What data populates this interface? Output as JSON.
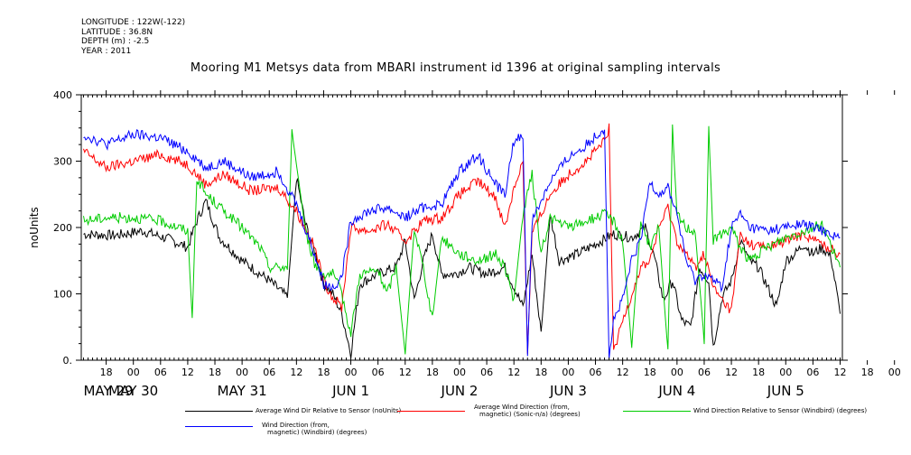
{
  "meta": {
    "longitude": "LONGITUDE : 122W(-122)",
    "latitude": "LATITUDE : 36.8N",
    "depth": "DEPTH (m) : -2.5",
    "year": "YEAR : 2011"
  },
  "chart_data": {
    "type": "line",
    "title": "Mooring M1 Metsys data from MBARI instrument id 1396 at original sampling intervals",
    "ylabel": "noUnits",
    "ylim": [
      0,
      400
    ],
    "yticks": [
      "0.",
      "100",
      "200",
      "300",
      "400"
    ],
    "hour_ticks": [
      "18",
      "00",
      "06",
      "12",
      "18",
      "00",
      "06",
      "12",
      "18",
      "00",
      "06",
      "12",
      "18",
      "00",
      "06",
      "12",
      "18",
      "00",
      "06",
      "12",
      "18",
      "00",
      "06",
      "12",
      "18",
      "00",
      "06",
      "12",
      "18",
      "00",
      "06",
      "12"
    ],
    "day_labels": [
      "MAY 29",
      "MAY 30",
      "MAY 31",
      "JUN  1",
      "JUN  2",
      "JUN  3",
      "JUN  4",
      "JUN  5"
    ],
    "x_unit": "hours since 2011-05-29 00:00",
    "xlim": [
      12.5,
      180.5
    ],
    "series": [
      {
        "name": "Average Wind Dir Relative to Sensor (noUnits)",
        "color": "#000000",
        "points": [
          [
            13,
            190
          ],
          [
            20,
            188
          ],
          [
            26,
            195
          ],
          [
            32,
            182
          ],
          [
            36,
            170
          ],
          [
            38,
            210
          ],
          [
            40,
            240
          ],
          [
            43,
            185
          ],
          [
            48,
            150
          ],
          [
            54,
            120
          ],
          [
            58,
            95
          ],
          [
            60,
            275
          ],
          [
            62,
            205
          ],
          [
            64,
            165
          ],
          [
            66,
            115
          ],
          [
            68,
            100
          ],
          [
            70,
            70
          ],
          [
            72,
            10
          ],
          [
            74,
            115
          ],
          [
            78,
            130
          ],
          [
            82,
            140
          ],
          [
            84,
            180
          ],
          [
            86,
            90
          ],
          [
            88,
            150
          ],
          [
            90,
            190
          ],
          [
            92,
            130
          ],
          [
            95,
            130
          ],
          [
            98,
            140
          ],
          [
            102,
            130
          ],
          [
            106,
            140
          ],
          [
            110,
            80
          ],
          [
            112,
            160
          ],
          [
            114,
            40
          ],
          [
            116,
            220
          ],
          [
            118,
            150
          ],
          [
            122,
            160
          ],
          [
            126,
            175
          ],
          [
            130,
            190
          ],
          [
            134,
            185
          ],
          [
            137,
            200
          ],
          [
            139,
            155
          ],
          [
            141,
            90
          ],
          [
            143,
            120
          ],
          [
            145,
            60
          ],
          [
            147,
            50
          ],
          [
            149,
            140
          ],
          [
            151,
            120
          ],
          [
            152,
            20
          ],
          [
            154,
            95
          ],
          [
            156,
            120
          ],
          [
            158,
            180
          ],
          [
            160,
            150
          ],
          [
            162,
            140
          ],
          [
            164,
            110
          ],
          [
            166,
            80
          ],
          [
            168,
            150
          ],
          [
            170,
            160
          ],
          [
            172,
            175
          ],
          [
            174,
            160
          ],
          [
            176,
            170
          ],
          [
            178,
            155
          ],
          [
            180,
            70
          ]
        ]
      },
      {
        "name": "Average Wind Direction (from, magnetic) (Sonic-n/a) (degrees)",
        "color": "#ff0000",
        "points": [
          [
            13,
            315
          ],
          [
            18,
            290
          ],
          [
            24,
            300
          ],
          [
            30,
            310
          ],
          [
            36,
            295
          ],
          [
            40,
            265
          ],
          [
            44,
            280
          ],
          [
            50,
            255
          ],
          [
            56,
            260
          ],
          [
            60,
            225
          ],
          [
            64,
            170
          ],
          [
            66,
            120
          ],
          [
            68,
            95
          ],
          [
            70,
            80
          ],
          [
            72,
            200
          ],
          [
            76,
            195
          ],
          [
            80,
            205
          ],
          [
            84,
            180
          ],
          [
            88,
            210
          ],
          [
            92,
            215
          ],
          [
            96,
            250
          ],
          [
            100,
            270
          ],
          [
            104,
            245
          ],
          [
            106,
            200
          ],
          [
            108,
            260
          ],
          [
            110,
            300
          ],
          [
            111,
            10
          ],
          [
            112,
            190
          ],
          [
            116,
            250
          ],
          [
            120,
            280
          ],
          [
            124,
            300
          ],
          [
            128,
            330
          ],
          [
            129,
            350
          ],
          [
            130,
            10
          ],
          [
            132,
            60
          ],
          [
            134,
            100
          ],
          [
            136,
            140
          ],
          [
            138,
            150
          ],
          [
            140,
            200
          ],
          [
            142,
            230
          ],
          [
            144,
            180
          ],
          [
            146,
            160
          ],
          [
            148,
            140
          ],
          [
            150,
            160
          ],
          [
            152,
            110
          ],
          [
            154,
            90
          ],
          [
            156,
            75
          ],
          [
            158,
            190
          ],
          [
            160,
            175
          ],
          [
            164,
            170
          ],
          [
            168,
            180
          ],
          [
            172,
            190
          ],
          [
            176,
            175
          ],
          [
            180,
            160
          ]
        ]
      },
      {
        "name": "Wind Direction Relative to Sensor (Windbird) (degrees)",
        "color": "#00cc00",
        "points": [
          [
            13,
            210
          ],
          [
            18,
            215
          ],
          [
            24,
            215
          ],
          [
            30,
            210
          ],
          [
            36,
            195
          ],
          [
            37,
            60
          ],
          [
            38,
            275
          ],
          [
            40,
            250
          ],
          [
            44,
            225
          ],
          [
            48,
            200
          ],
          [
            52,
            170
          ],
          [
            54,
            140
          ],
          [
            58,
            140
          ],
          [
            59,
            345
          ],
          [
            62,
            195
          ],
          [
            64,
            145
          ],
          [
            66,
            130
          ],
          [
            68,
            130
          ],
          [
            70,
            100
          ],
          [
            72,
            40
          ],
          [
            74,
            130
          ],
          [
            78,
            135
          ],
          [
            80,
            100
          ],
          [
            82,
            140
          ],
          [
            84,
            10
          ],
          [
            86,
            200
          ],
          [
            88,
            140
          ],
          [
            90,
            60
          ],
          [
            92,
            185
          ],
          [
            96,
            160
          ],
          [
            100,
            150
          ],
          [
            104,
            160
          ],
          [
            106,
            140
          ],
          [
            108,
            90
          ],
          [
            110,
            220
          ],
          [
            112,
            280
          ],
          [
            114,
            160
          ],
          [
            116,
            215
          ],
          [
            120,
            200
          ],
          [
            124,
            210
          ],
          [
            128,
            220
          ],
          [
            130,
            210
          ],
          [
            132,
            180
          ],
          [
            134,
            20
          ],
          [
            136,
            210
          ],
          [
            138,
            170
          ],
          [
            140,
            200
          ],
          [
            142,
            10
          ],
          [
            143,
            350
          ],
          [
            144,
            220
          ],
          [
            146,
            200
          ],
          [
            148,
            195
          ],
          [
            150,
            30
          ],
          [
            151,
            350
          ],
          [
            152,
            180
          ],
          [
            154,
            190
          ],
          [
            156,
            200
          ],
          [
            158,
            170
          ],
          [
            160,
            150
          ],
          [
            162,
            160
          ],
          [
            164,
            170
          ],
          [
            168,
            185
          ],
          [
            172,
            195
          ],
          [
            176,
            205
          ],
          [
            180,
            140
          ]
        ]
      },
      {
        "name": "Wind Direction (from, magnetic) (Windbird) (degrees)",
        "color": "#0000ff",
        "points": [
          [
            13,
            340
          ],
          [
            18,
            325
          ],
          [
            24,
            340
          ],
          [
            30,
            335
          ],
          [
            36,
            315
          ],
          [
            40,
            290
          ],
          [
            44,
            300
          ],
          [
            50,
            275
          ],
          [
            56,
            285
          ],
          [
            60,
            235
          ],
          [
            64,
            160
          ],
          [
            66,
            115
          ],
          [
            68,
            110
          ],
          [
            70,
            125
          ],
          [
            72,
            210
          ],
          [
            76,
            225
          ],
          [
            80,
            230
          ],
          [
            84,
            215
          ],
          [
            88,
            230
          ],
          [
            92,
            235
          ],
          [
            96,
            285
          ],
          [
            100,
            310
          ],
          [
            104,
            265
          ],
          [
            106,
            250
          ],
          [
            108,
            330
          ],
          [
            110,
            340
          ],
          [
            111,
            5
          ],
          [
            112,
            210
          ],
          [
            116,
            270
          ],
          [
            120,
            305
          ],
          [
            124,
            325
          ],
          [
            128,
            350
          ],
          [
            129,
            5
          ],
          [
            130,
            60
          ],
          [
            132,
            90
          ],
          [
            134,
            150
          ],
          [
            136,
            180
          ],
          [
            138,
            270
          ],
          [
            140,
            250
          ],
          [
            142,
            260
          ],
          [
            144,
            220
          ],
          [
            146,
            150
          ],
          [
            148,
            120
          ],
          [
            150,
            130
          ],
          [
            152,
            120
          ],
          [
            154,
            110
          ],
          [
            156,
            200
          ],
          [
            158,
            220
          ],
          [
            160,
            200
          ],
          [
            164,
            195
          ],
          [
            168,
            200
          ],
          [
            172,
            205
          ],
          [
            176,
            195
          ],
          [
            180,
            185
          ]
        ]
      }
    ]
  },
  "legend": {
    "black": "Average Wind Dir Relative to Sensor (noUnits)",
    "red_line1": "Average Wind Direction (from,",
    "red_line2": "magnetic) (Sonic-n/a) (degrees)",
    "green": "Wind Direction Relative to Sensor (Windbird) (degrees)",
    "blue_line1": "Wind Direction (from,",
    "blue_line2": "magnetic) (Windbird) (degrees)"
  }
}
